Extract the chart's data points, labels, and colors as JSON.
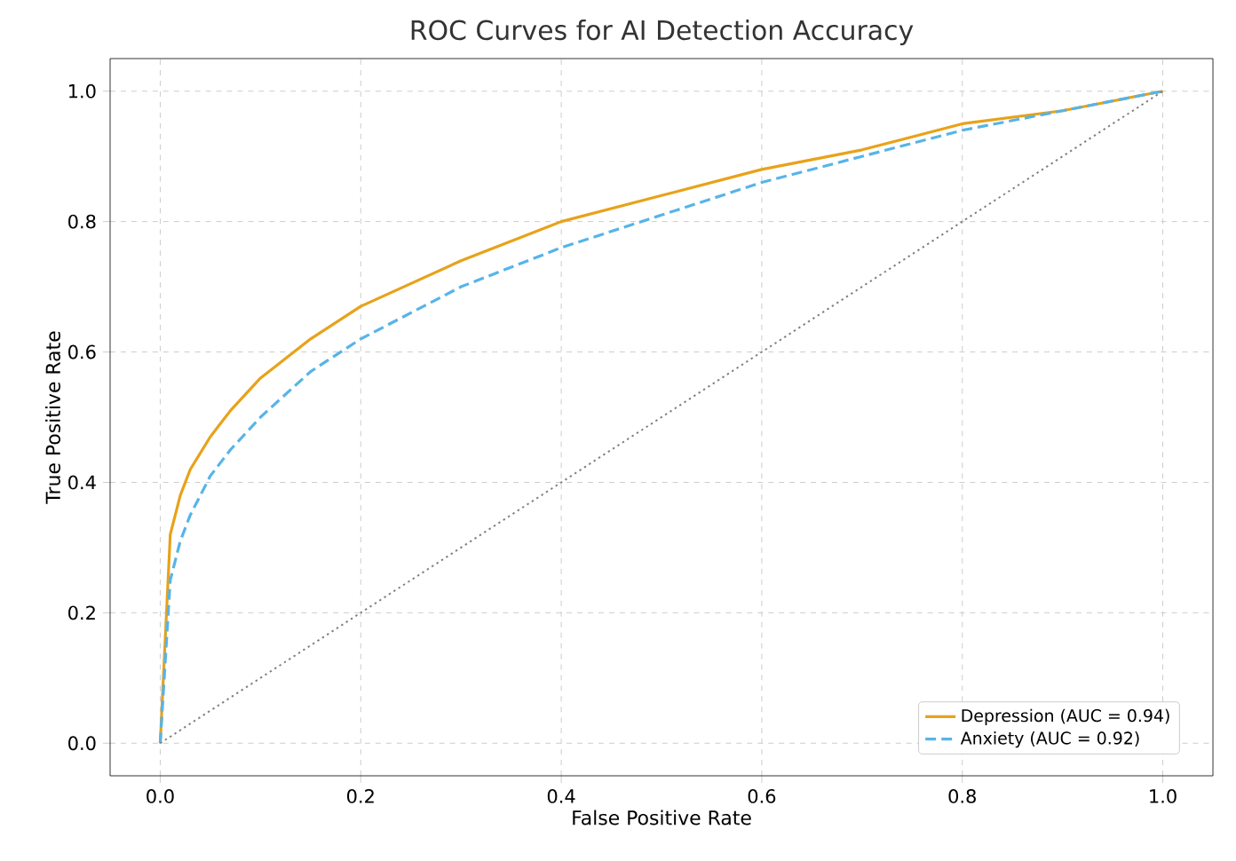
{
  "chart_data": {
    "type": "line",
    "title": "ROC Curves for AI Detection Accuracy",
    "xlabel": "False Positive Rate",
    "ylabel": "True Positive Rate",
    "xlim": [
      -0.05,
      1.05
    ],
    "ylim": [
      -0.05,
      1.05
    ],
    "xticks": [
      {
        "value": 0,
        "label": "0.0"
      },
      {
        "value": 0.2,
        "label": "0.2"
      },
      {
        "value": 0.4,
        "label": "0.4"
      },
      {
        "value": 0.6,
        "label": "0.6"
      },
      {
        "value": 0.8,
        "label": "0.8"
      },
      {
        "value": 1,
        "label": "1.0"
      }
    ],
    "yticks": [
      {
        "value": 0,
        "label": "0.0"
      },
      {
        "value": 0.2,
        "label": "0.2"
      },
      {
        "value": 0.4,
        "label": "0.4"
      },
      {
        "value": 0.6,
        "label": "0.6"
      },
      {
        "value": 0.8,
        "label": "0.8"
      },
      {
        "value": 1,
        "label": "1.0"
      }
    ],
    "grid": true,
    "legend": "bottom right",
    "series": [
      {
        "name": "Depression (AUC = 0.94)",
        "color": "#e8a21a",
        "line_style": "solid",
        "x": [
          0,
          0.01,
          0.02,
          0.03,
          0.05,
          0.07,
          0.1,
          0.15,
          0.2,
          0.3,
          0.4,
          0.5,
          0.6,
          0.7,
          0.8,
          0.9,
          1
        ],
        "values": [
          0,
          0.32,
          0.38,
          0.42,
          0.47,
          0.51,
          0.56,
          0.62,
          0.67,
          0.74,
          0.8,
          0.84,
          0.88,
          0.91,
          0.95,
          0.97,
          1
        ]
      },
      {
        "name": "Anxiety (AUC = 0.92)",
        "color": "#56b4e9",
        "line_style": "dashed",
        "x": [
          0,
          0.01,
          0.02,
          0.03,
          0.05,
          0.07,
          0.1,
          0.15,
          0.2,
          0.3,
          0.4,
          0.5,
          0.6,
          0.7,
          0.8,
          0.9,
          1
        ],
        "values": [
          0,
          0.25,
          0.31,
          0.35,
          0.41,
          0.45,
          0.5,
          0.57,
          0.62,
          0.7,
          0.76,
          0.81,
          0.86,
          0.9,
          0.94,
          0.97,
          1
        ]
      },
      {
        "color": "#808080",
        "line_style": "dotted",
        "x": [
          0,
          1
        ],
        "values": [
          0,
          1
        ]
      }
    ]
  }
}
